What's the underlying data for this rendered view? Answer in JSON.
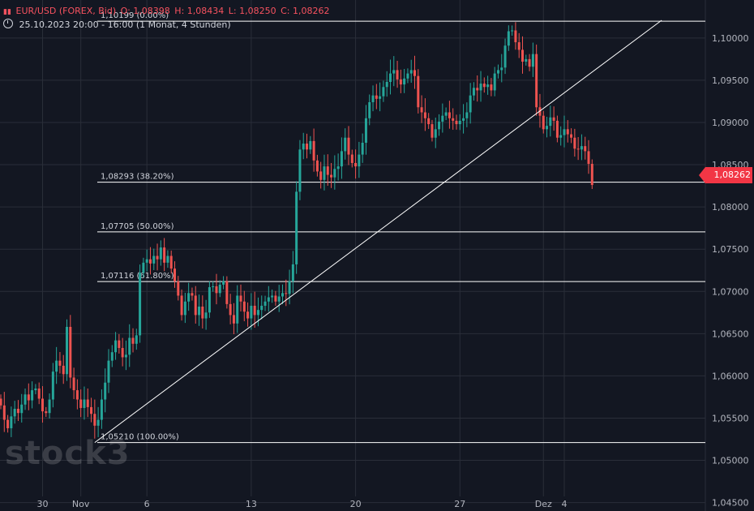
{
  "header": {
    "symbol": "EUR/USD (FOREX, Bid)",
    "open": "O: 1,08398",
    "high": "H: 1,08434",
    "low": "L: 1,08250",
    "close": "C: 1,08262",
    "range": "25.10.2023 20:00 - 16:00",
    "interval": "(1 Monat, 4 Stunden)"
  },
  "watermark": "stock3",
  "last_price_label": "1,08262",
  "colors": {
    "up": "#26a69a",
    "down": "#ef5350",
    "background": "#131722",
    "grid": "#2a2e39",
    "lines": "#ffffff"
  },
  "chart_data": {
    "type": "candlestick",
    "ylim": [
      1.044,
      1.1045
    ],
    "yticks": [
      {
        "value": 1.1,
        "label": "1,10000"
      },
      {
        "value": 1.095,
        "label": "1,09500"
      },
      {
        "value": 1.09,
        "label": "1,09000"
      },
      {
        "value": 1.085,
        "label": "1,08500"
      },
      {
        "value": 1.08,
        "label": "1,08000"
      },
      {
        "value": 1.075,
        "label": "1,07500"
      },
      {
        "value": 1.07,
        "label": "1,07000"
      },
      {
        "value": 1.065,
        "label": "1,06500"
      },
      {
        "value": 1.06,
        "label": "1,06000"
      },
      {
        "value": 1.055,
        "label": "1,05500"
      },
      {
        "value": 1.05,
        "label": "1,05000"
      },
      {
        "value": 1.045,
        "label": "1,04500"
      }
    ],
    "xticks": [
      {
        "index": 12,
        "label": "30"
      },
      {
        "index": 23,
        "label": "Nov"
      },
      {
        "index": 42,
        "label": "6"
      },
      {
        "index": 72,
        "label": "13"
      },
      {
        "index": 102,
        "label": "20"
      },
      {
        "index": 132,
        "label": "27"
      },
      {
        "index": 156,
        "label": "Dez"
      },
      {
        "index": 162,
        "label": "4"
      }
    ],
    "fib_levels": [
      {
        "value": 1.10199,
        "label": "1,10199 (0.00%)"
      },
      {
        "value": 1.08293,
        "label": "1,08293 (38.20%)"
      },
      {
        "value": 1.07705,
        "label": "1,07705 (50.00%)"
      },
      {
        "value": 1.07116,
        "label": "1,07116 (61.80%)"
      },
      {
        "value": 1.0521,
        "label": "1,05210 (100.00%)"
      }
    ],
    "trendline": [
      {
        "index": 27,
        "value": 1.0521
      },
      {
        "index": 190,
        "value": 1.1021
      }
    ],
    "last_price": 1.08262,
    "closes": [
      1.0565,
      1.0548,
      1.0538,
      1.0552,
      1.0561,
      1.0556,
      1.0566,
      1.0578,
      1.0571,
      1.0583,
      1.0585,
      1.0573,
      1.0558,
      1.0556,
      1.0572,
      1.0605,
      1.0618,
      1.0612,
      1.0602,
      1.0658,
      1.0598,
      1.0583,
      1.0572,
      1.0562,
      1.0572,
      1.0563,
      1.0555,
      1.0541,
      1.0548,
      1.0572,
      1.0592,
      1.0618,
      1.0628,
      1.0642,
      1.0633,
      1.0622,
      1.0625,
      1.0645,
      1.0638,
      1.0648,
      1.0722,
      1.0734,
      1.0738,
      1.0733,
      1.0742,
      1.0738,
      1.0752,
      1.0734,
      1.0742,
      1.0727,
      1.0712,
      1.0695,
      1.0672,
      1.0688,
      1.0698,
      1.0695,
      1.0672,
      1.0682,
      1.0668,
      1.0675,
      1.0705,
      1.0706,
      1.0698,
      1.0708,
      1.0712,
      1.0685,
      1.0672,
      1.0662,
      1.0695,
      1.0688,
      1.0676,
      1.0668,
      1.0683,
      1.0672,
      1.0678,
      1.0683,
      1.0688,
      1.0693,
      1.0695,
      1.0688,
      1.0694,
      1.0698,
      1.0697,
      1.0712,
      1.0732,
      1.0818,
      1.0868,
      1.0875,
      1.0868,
      1.0878,
      1.0855,
      1.0842,
      1.0832,
      1.0848,
      1.0838,
      1.0835,
      1.0845,
      1.0848,
      1.0866,
      1.0882,
      1.0862,
      1.0852,
      1.0848,
      1.0862,
      1.0876,
      1.0905,
      1.0924,
      1.0932,
      1.0928,
      1.0931,
      1.0942,
      1.0948,
      1.0958,
      1.0962,
      1.0951,
      1.0945,
      1.0952,
      1.0958,
      1.0962,
      1.0955,
      1.0918,
      1.0912,
      1.0905,
      1.0898,
      1.0882,
      1.0892,
      1.0901,
      1.0908,
      1.0912,
      1.0905,
      1.0902,
      1.0898,
      1.0902,
      1.0905,
      1.0912,
      1.0932,
      1.0941,
      1.0938,
      1.0946,
      1.0942,
      1.0945,
      1.0938,
      1.0958,
      1.0962,
      1.0965,
      1.0991,
      1.1008,
      1.1009,
      1.0995,
      1.0986,
      1.0972,
      1.0975,
      1.0966,
      1.0981,
      1.0918,
      1.0908,
      1.0892,
      1.0896,
      1.0906,
      1.0902,
      1.0882,
      1.0885,
      1.0892,
      1.0886,
      1.0882,
      1.0869,
      1.0868,
      1.0872,
      1.0866,
      1.0851,
      1.0826
    ]
  }
}
